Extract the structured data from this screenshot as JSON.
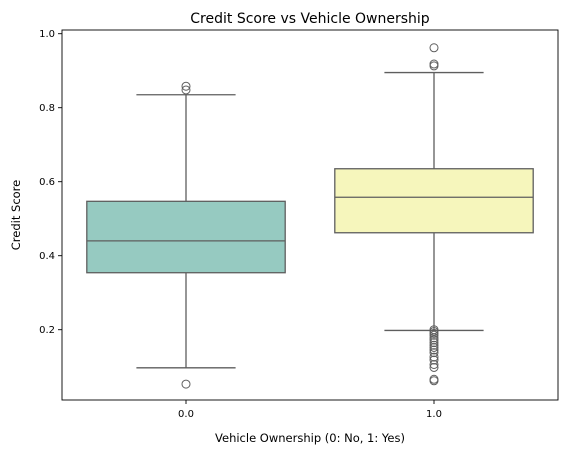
{
  "chart_data": {
    "type": "box",
    "title": "Credit Score vs Vehicle Ownership",
    "xlabel": "Vehicle Ownership (0: No, 1: Yes)",
    "ylabel": "Credit Score",
    "categories": [
      "0.0",
      "1.0"
    ],
    "ylim": [
      0.01,
      1.01
    ],
    "yticks": [
      "0.2",
      "0.4",
      "0.6",
      "0.8",
      "1.0"
    ],
    "ytick_values": [
      0.2,
      0.4,
      0.6,
      0.8,
      1.0
    ],
    "grid": false,
    "boxes": [
      {
        "category": "0.0",
        "color": "#96cac1",
        "whisker_low": 0.097,
        "q1": 0.354,
        "median": 0.44,
        "q3": 0.547,
        "whisker_high": 0.835,
        "outliers": [
          0.053,
          0.848,
          0.858
        ]
      },
      {
        "category": "1.0",
        "color": "#f6f6bc",
        "whisker_low": 0.198,
        "q1": 0.462,
        "median": 0.558,
        "q3": 0.635,
        "whisker_high": 0.895,
        "outliers": [
          0.062,
          0.066,
          0.098,
          0.106,
          0.118,
          0.126,
          0.138,
          0.145,
          0.152,
          0.158,
          0.165,
          0.172,
          0.178,
          0.185,
          0.19,
          0.195,
          0.2,
          0.913,
          0.918,
          0.962
        ]
      }
    ],
    "line_color": "#5e5e5e",
    "outlier_edge_color": "#5e5e5e"
  }
}
